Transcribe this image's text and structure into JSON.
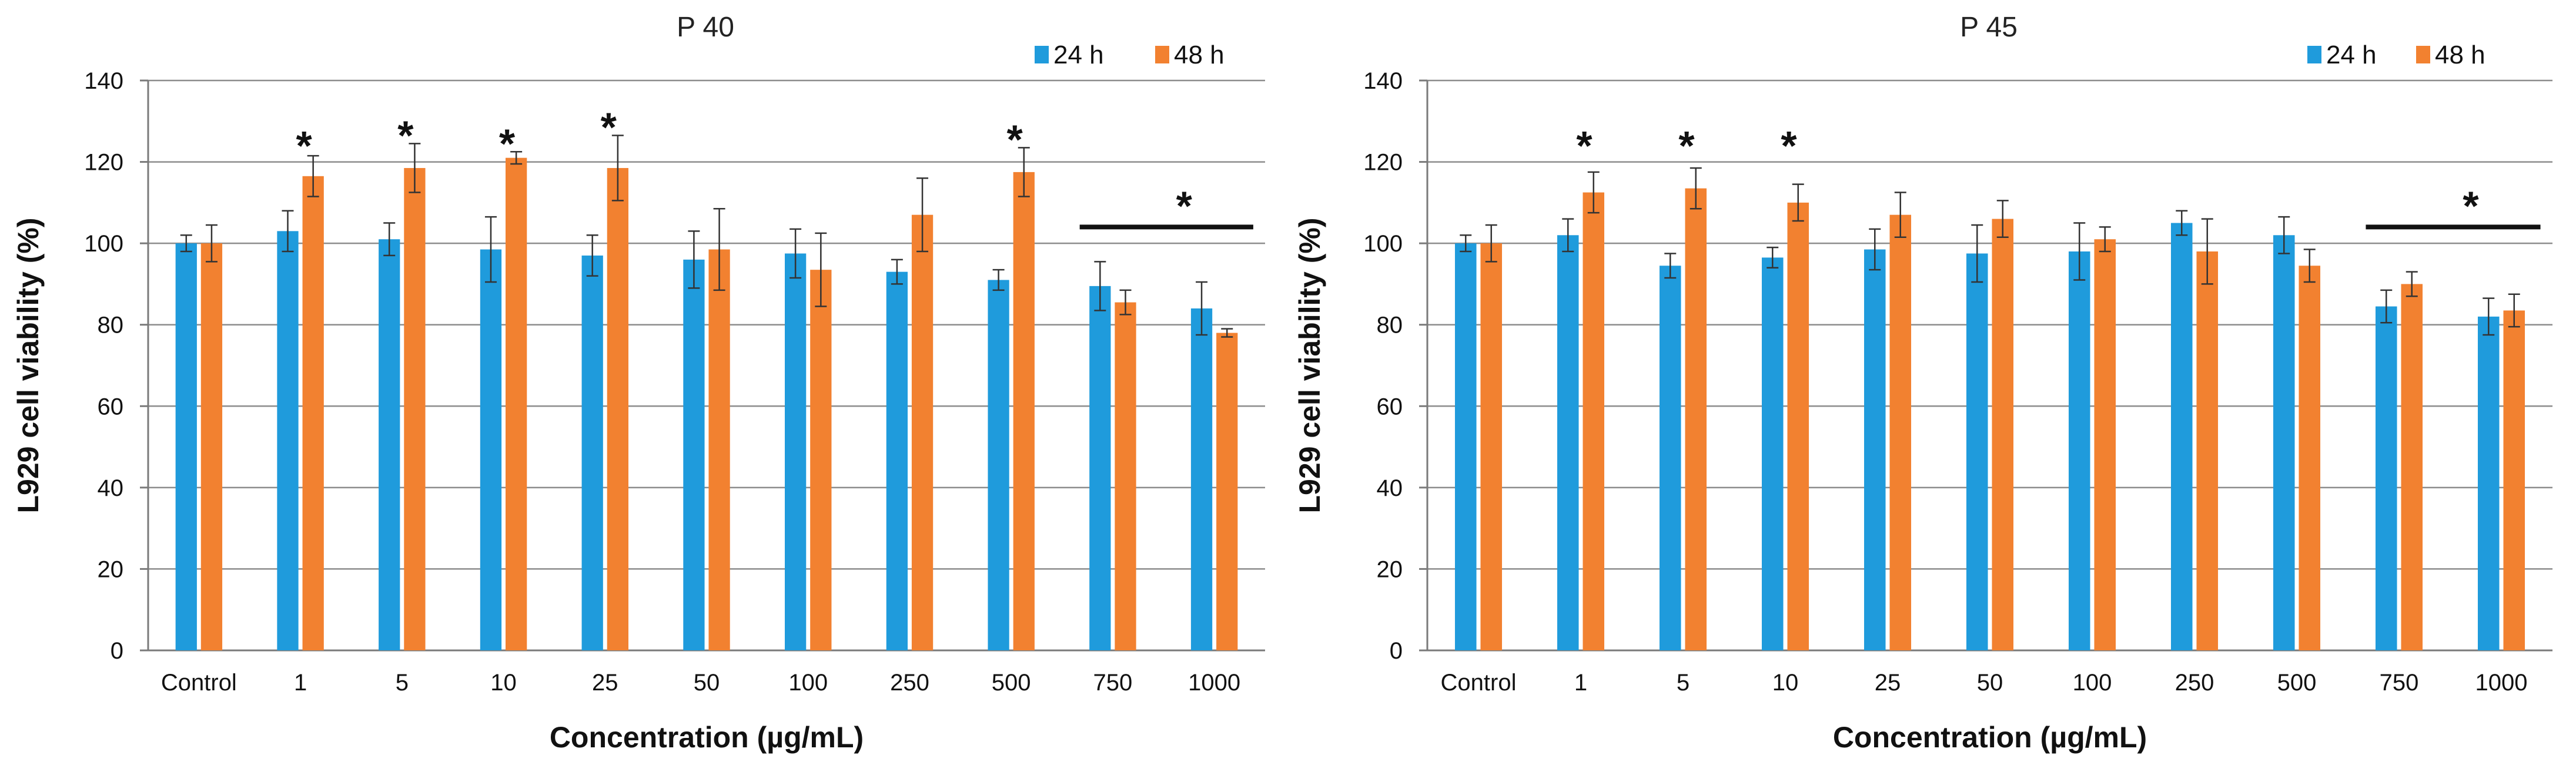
{
  "figure_panels": "2",
  "chart_data": [
    {
      "type": "bar",
      "title": "P 40",
      "xlabel": "Concentration (µg/mL)",
      "ylabel": "L929 cell viability  (%)",
      "ylim": [
        0,
        140
      ],
      "yticks": [
        "0",
        "20",
        "40",
        "60",
        "80",
        "100",
        "120",
        "140"
      ],
      "grid": true,
      "legend": "top-right",
      "categories": [
        "Control",
        "1",
        "5",
        "10",
        "25",
        "50",
        "100",
        "250",
        "500",
        "750",
        "1000"
      ],
      "series": [
        {
          "name": "24 h",
          "color": "#1f9bdc",
          "values": [
            100,
            103,
            101,
            98.5,
            97,
            96,
            97.5,
            93,
            91,
            89.5,
            84
          ],
          "errors": [
            2,
            5,
            4,
            8,
            5,
            7,
            6,
            3,
            2.5,
            6,
            6.5
          ]
        },
        {
          "name": "48 h",
          "color": "#f28130",
          "values": [
            100,
            116.5,
            118.5,
            121,
            118.5,
            98.5,
            93.5,
            107,
            117.5,
            85.5,
            78
          ],
          "errors": [
            4.5,
            5,
            6,
            1.5,
            8,
            10,
            9,
            9,
            6,
            3,
            1
          ]
        }
      ],
      "annotations": [
        {
          "text": "*",
          "category": "1"
        },
        {
          "text": "*",
          "category": "5"
        },
        {
          "text": "*",
          "category": "10"
        },
        {
          "text": "*",
          "category": "25"
        },
        {
          "text": "*",
          "category": "500"
        },
        {
          "text": "*",
          "span": [
            "750",
            "1000"
          ]
        }
      ]
    },
    {
      "type": "bar",
      "title": "P 45",
      "xlabel": "Concentration (µg/mL)",
      "ylabel": "L929 cell viability  (%)",
      "ylim": [
        0,
        140
      ],
      "yticks": [
        "0",
        "20",
        "40",
        "60",
        "80",
        "100",
        "120",
        "140"
      ],
      "grid": true,
      "legend": "top-right",
      "categories": [
        "Control",
        "1",
        "5",
        "10",
        "25",
        "50",
        "100",
        "250",
        "500",
        "750",
        "1000"
      ],
      "series": [
        {
          "name": "24 h",
          "color": "#1f9bdc",
          "values": [
            100,
            102,
            94.5,
            96.5,
            98.5,
            97.5,
            98,
            105,
            102,
            84.5,
            82
          ],
          "errors": [
            2,
            4,
            3,
            2.5,
            5,
            7,
            7,
            3,
            4.5,
            4,
            4.5
          ]
        },
        {
          "name": "48 h",
          "color": "#f28130",
          "values": [
            100,
            112.5,
            113.5,
            110,
            107,
            106,
            101,
            98,
            94.5,
            90,
            83.5
          ],
          "errors": [
            4.5,
            5,
            5,
            4.5,
            5.5,
            4.5,
            3,
            8,
            4,
            3,
            4
          ]
        }
      ],
      "annotations": [
        {
          "text": "*",
          "category": "1"
        },
        {
          "text": "*",
          "category": "5"
        },
        {
          "text": "*",
          "category": "10"
        },
        {
          "text": "*",
          "span": [
            "750",
            "1000"
          ]
        }
      ]
    }
  ]
}
